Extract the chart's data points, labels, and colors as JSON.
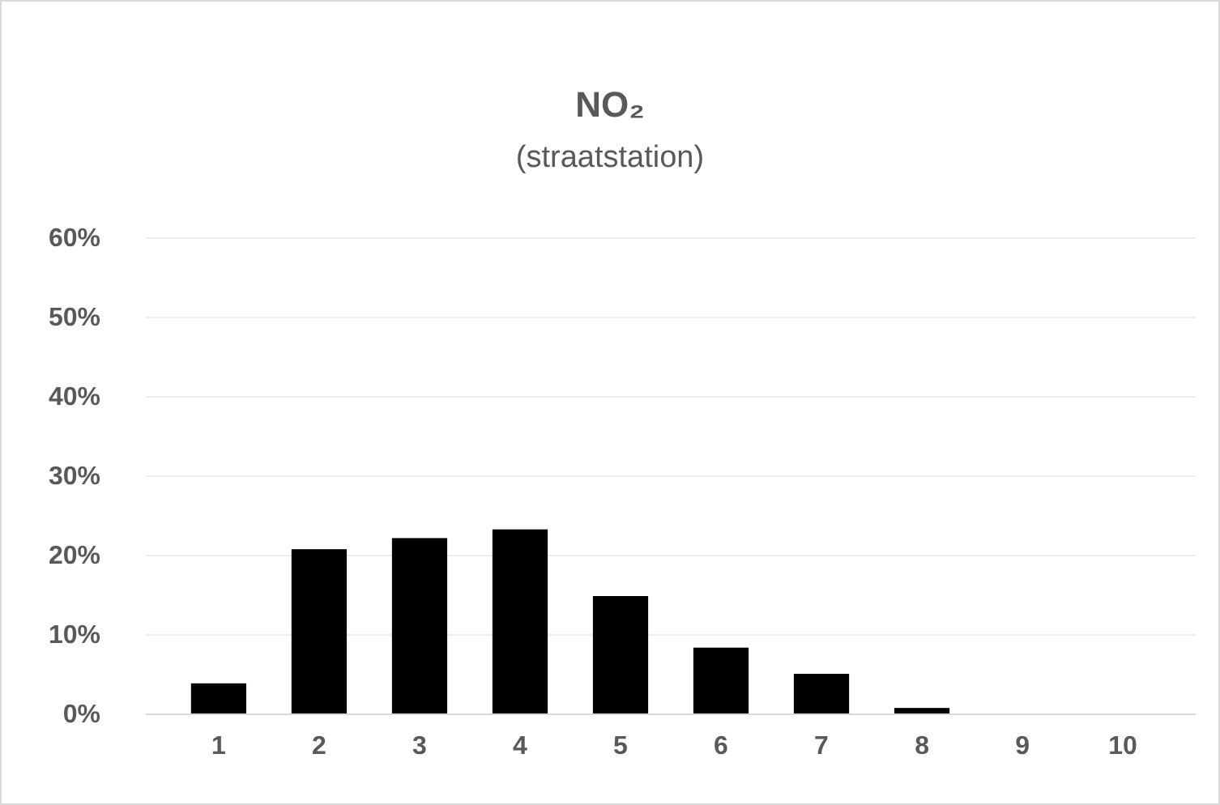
{
  "chart_data": {
    "type": "bar",
    "title": "NO₂",
    "subtitle": "(straatstation)",
    "categories": [
      "1",
      "2",
      "3",
      "4",
      "5",
      "6",
      "7",
      "8",
      "9",
      "10"
    ],
    "values": [
      3.9,
      20.8,
      22.2,
      23.3,
      14.9,
      8.4,
      5.1,
      0.8,
      0,
      0
    ],
    "color": "#000000",
    "ylim": [
      0,
      60
    ],
    "yticks": [
      {
        "value": 0,
        "label": "0%"
      },
      {
        "value": 10,
        "label": "10%"
      },
      {
        "value": 20,
        "label": "20%"
      },
      {
        "value": 30,
        "label": "30%"
      },
      {
        "value": 40,
        "label": "40%"
      },
      {
        "value": 50,
        "label": "50%"
      },
      {
        "value": 60,
        "label": "60%"
      }
    ],
    "grid": "y"
  }
}
